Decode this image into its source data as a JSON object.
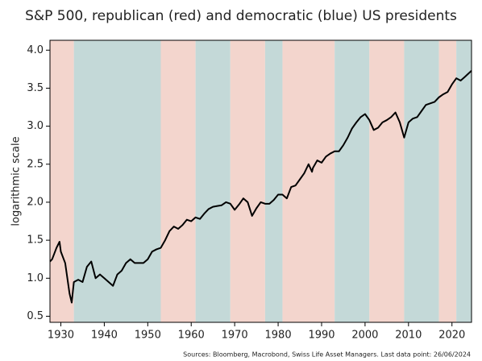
{
  "chart_data": {
    "type": "line",
    "title": "S&P 500, republican (red) and democratic (blue) US presidents",
    "y_label": "logarithmic scale",
    "source": "Sources: Bloomberg, Macrobond, Swiss Life Asset Managers. Last data point: 26/06/2024",
    "color": "#000000",
    "x": [
      1927.5,
      1928,
      1929,
      1929.7,
      1930,
      1931,
      1932,
      1932.5,
      1933,
      1934,
      1935,
      1936,
      1937,
      1938,
      1939,
      1940,
      1941,
      1942,
      1943,
      1944,
      1945,
      1946,
      1947,
      1948,
      1949,
      1950,
      1951,
      1952,
      1953,
      1954,
      1955,
      1956,
      1957,
      1958,
      1959,
      1960,
      1961,
      1962,
      1963,
      1964,
      1965,
      1966,
      1967,
      1968,
      1969,
      1970,
      1971,
      1972,
      1973,
      1974,
      1975,
      1976,
      1977,
      1978,
      1979,
      1980,
      1981,
      1982,
      1983,
      1984,
      1985,
      1986,
      1987,
      1987.8,
      1988,
      1989,
      1990,
      1991,
      1992,
      1993,
      1994,
      1995,
      1996,
      1997,
      1998,
      1999,
      2000,
      2001,
      2002,
      2003,
      2004,
      2005,
      2006,
      2007,
      2008,
      2009,
      2010,
      2011,
      2012,
      2013,
      2014,
      2015,
      2016,
      2017,
      2018,
      2019,
      2020,
      2021,
      2022,
      2023,
      2024.5
    ],
    "values": [
      1.22,
      1.25,
      1.4,
      1.48,
      1.35,
      1.2,
      0.8,
      0.68,
      0.95,
      0.98,
      0.95,
      1.15,
      1.22,
      1.0,
      1.05,
      1.0,
      0.95,
      0.9,
      1.05,
      1.1,
      1.2,
      1.25,
      1.2,
      1.2,
      1.2,
      1.25,
      1.35,
      1.38,
      1.4,
      1.5,
      1.62,
      1.68,
      1.65,
      1.7,
      1.77,
      1.75,
      1.8,
      1.78,
      1.85,
      1.91,
      1.94,
      1.95,
      1.96,
      2.0,
      1.98,
      1.9,
      1.97,
      2.05,
      2.0,
      1.82,
      1.92,
      2.0,
      1.98,
      1.98,
      2.03,
      2.1,
      2.1,
      2.05,
      2.2,
      2.22,
      2.3,
      2.38,
      2.5,
      2.4,
      2.45,
      2.55,
      2.52,
      2.6,
      2.64,
      2.67,
      2.67,
      2.75,
      2.85,
      2.97,
      3.05,
      3.12,
      3.16,
      3.08,
      2.95,
      2.98,
      3.05,
      3.08,
      3.12,
      3.18,
      3.05,
      2.85,
      3.05,
      3.1,
      3.12,
      3.2,
      3.28,
      3.3,
      3.32,
      3.38,
      3.42,
      3.45,
      3.55,
      3.63,
      3.6,
      3.65,
      3.73
    ],
    "periods": [
      {
        "start": 1927.5,
        "end": 1933,
        "color": "#f3d5cd"
      },
      {
        "start": 1933,
        "end": 1953,
        "color": "#c4d9d8"
      },
      {
        "start": 1953,
        "end": 1961,
        "color": "#f3d5cd"
      },
      {
        "start": 1961,
        "end": 1969,
        "color": "#c4d9d8"
      },
      {
        "start": 1969,
        "end": 1977,
        "color": "#f3d5cd"
      },
      {
        "start": 1977,
        "end": 1981,
        "color": "#c4d9d8"
      },
      {
        "start": 1981,
        "end": 1993,
        "color": "#f3d5cd"
      },
      {
        "start": 1993,
        "end": 2001,
        "color": "#c4d9d8"
      },
      {
        "start": 2001,
        "end": 2009,
        "color": "#f3d5cd"
      },
      {
        "start": 2009,
        "end": 2017,
        "color": "#c4d9d8"
      },
      {
        "start": 2017,
        "end": 2021,
        "color": "#f3d5cd"
      },
      {
        "start": 2021,
        "end": 2024.5,
        "color": "#c4d9d8"
      }
    ],
    "xlim": [
      1927.5,
      2024.5
    ],
    "ylim": [
      0.42,
      4.13
    ],
    "xticks": [
      1930,
      1940,
      1950,
      1960,
      1970,
      1980,
      1990,
      2000,
      2010,
      2020
    ],
    "yticks": [
      0.5,
      {
        "value": 1.0,
        "label": "1.0"
      },
      1.5,
      {
        "value": 2.0,
        "label": "2.0"
      },
      2.5,
      {
        "value": 3.0,
        "label": "3.0"
      },
      3.5,
      {
        "value": 4.0,
        "label": "4.0"
      }
    ]
  }
}
